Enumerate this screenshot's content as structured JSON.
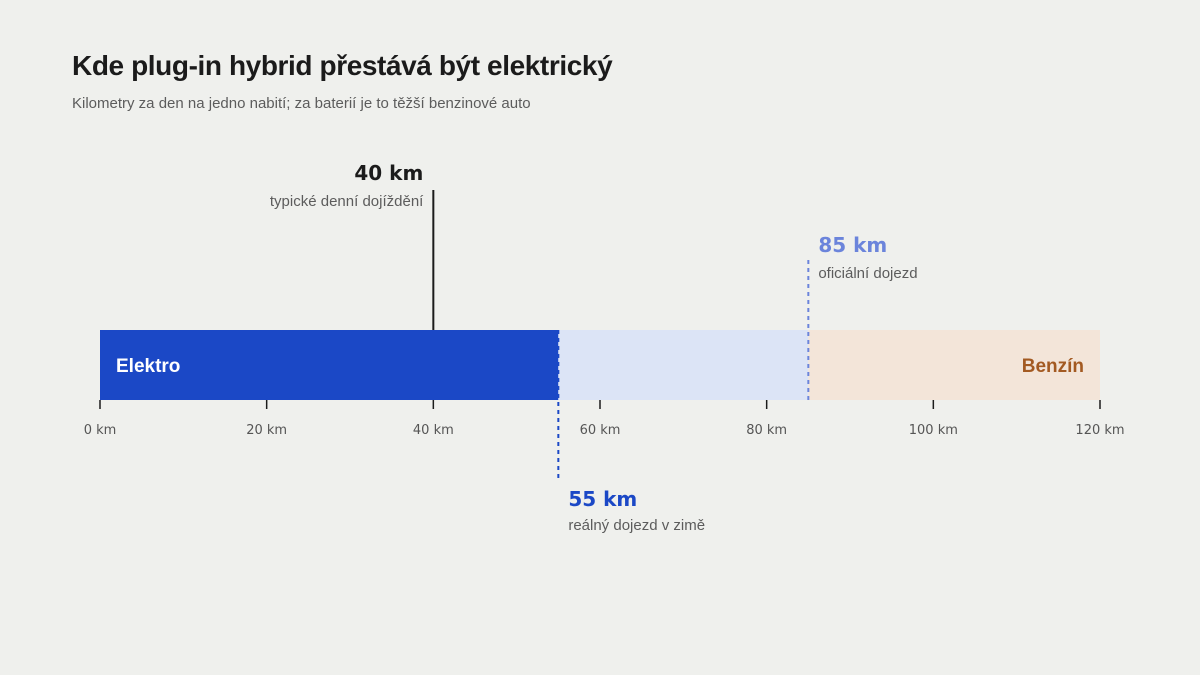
{
  "title": "Kde plug-in hybrid přestává být elektrický",
  "subtitle": "Kilometry za den na jedno nabití; za baterií je to těžší benzinové auto",
  "colors": {
    "electric": "#1b48c6",
    "official_range_zone": "#dce4f6",
    "petrol_zone": "#f3e5d9",
    "petrol_text": "#a35a22",
    "official_marker": "#6b84db",
    "real_marker": "#1b48c6",
    "commute_marker": "#1b1b1b",
    "axis": "#1b1b1b"
  },
  "chart_data": {
    "type": "bar",
    "xlim": [
      0,
      120
    ],
    "ticks": [
      0,
      20,
      40,
      60,
      80,
      100,
      120
    ],
    "tick_labels": [
      "0 km",
      "20 km",
      "40 km",
      "60 km",
      "80 km",
      "100 km",
      "120 km"
    ],
    "segments": [
      {
        "from": 0,
        "to": 55,
        "label": "Elektro",
        "color": "#1b48c6",
        "text_color": "#ffffff",
        "label_align": "start"
      },
      {
        "from": 55,
        "to": 85,
        "label": "",
        "color": "#dce4f6",
        "text_color": "#1b48c6",
        "label_align": "start"
      },
      {
        "from": 85,
        "to": 120,
        "label": "Benzín",
        "color": "#f3e5d9",
        "text_color": "#a35a22",
        "label_align": "end"
      }
    ],
    "markers": [
      {
        "value": 40,
        "value_label": "40 km",
        "description": "typické denní dojíždění",
        "position": "above-left",
        "style": "solid",
        "color": "#1b1b1b",
        "text_color": "#1b1b1b"
      },
      {
        "value": 85,
        "value_label": "85 km",
        "description": "oficiální dojezd",
        "position": "above-right",
        "style": "dashed",
        "color": "#6b84db",
        "text_color": "#6b84db"
      },
      {
        "value": 55,
        "value_label": "55 km",
        "description": "reálný dojezd v zimě",
        "position": "below-right",
        "style": "dashed",
        "color": "#1b48c6",
        "text_color": "#1b48c6"
      }
    ]
  }
}
